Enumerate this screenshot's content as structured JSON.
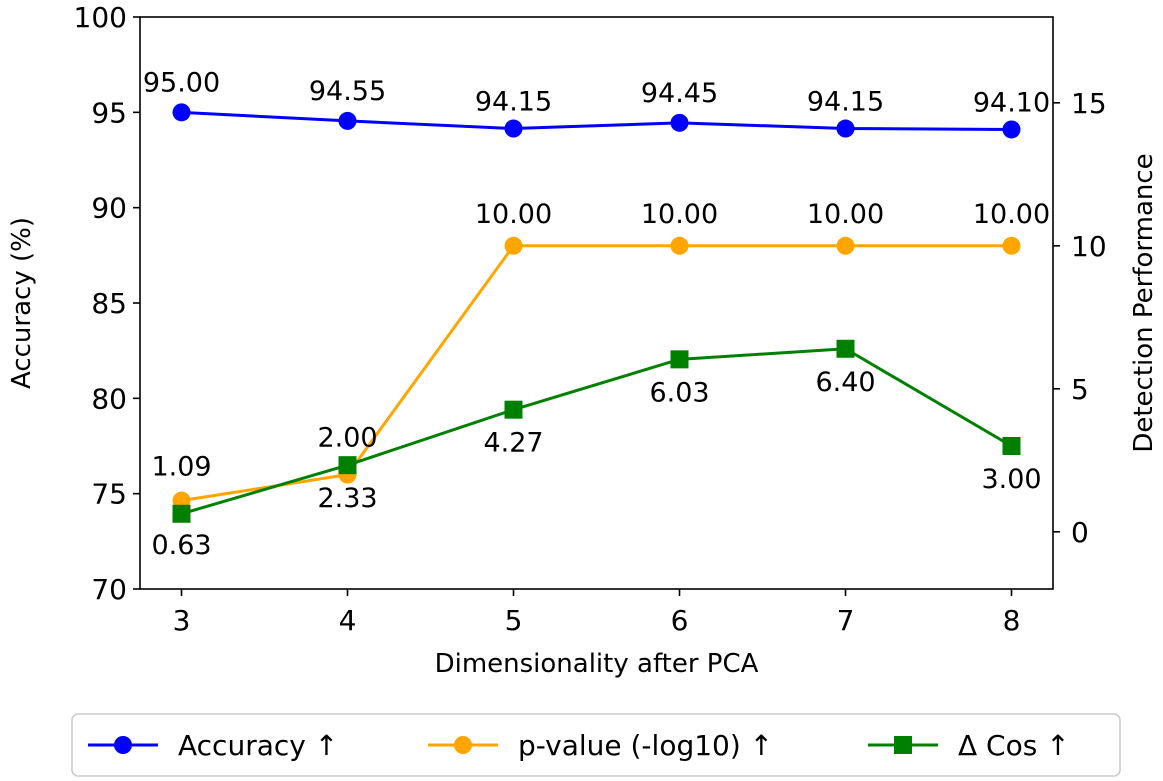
{
  "chart_data": {
    "type": "line",
    "xlabel": "Dimensionality after PCA",
    "ylabel_left": "Accuracy (%)",
    "ylabel_right": "Detection Performance",
    "x": [
      3,
      4,
      5,
      6,
      7,
      8
    ],
    "x_ticks": [
      "3",
      "4",
      "5",
      "6",
      "7",
      "8"
    ],
    "xlim": [
      2.75,
      8.25
    ],
    "ylim_left": [
      70,
      100
    ],
    "yticks_left": [
      "70",
      "75",
      "80",
      "85",
      "90",
      "95",
      "100"
    ],
    "ylim_right": [
      -2,
      18
    ],
    "yticks_right": [
      "0",
      "5",
      "10",
      "15"
    ],
    "grid": false,
    "legend_position": "bottom",
    "series": [
      {
        "name": "Accuracy ↑",
        "axis": "left",
        "color": "#0000ff",
        "marker": "circle",
        "values": [
          95.0,
          94.55,
          94.15,
          94.45,
          94.15,
          94.1
        ],
        "labels": [
          "95.00",
          "94.55",
          "94.15",
          "94.45",
          "94.15",
          "94.10"
        ]
      },
      {
        "name": "p-value (-log10) ↑",
        "axis": "right",
        "color": "#ffa500",
        "marker": "circle",
        "values": [
          1.09,
          2.0,
          10.0,
          10.0,
          10.0,
          10.0
        ],
        "labels": [
          "1.09",
          "2.00",
          "10.00",
          "10.00",
          "10.00",
          "10.00"
        ]
      },
      {
        "name": "Δ Cos ↑",
        "axis": "right",
        "color": "#008000",
        "marker": "square",
        "values": [
          0.63,
          2.33,
          4.27,
          6.03,
          6.4,
          3.0
        ],
        "labels": [
          "0.63",
          "2.33",
          "4.27",
          "6.03",
          "6.40",
          "3.00"
        ]
      }
    ]
  }
}
